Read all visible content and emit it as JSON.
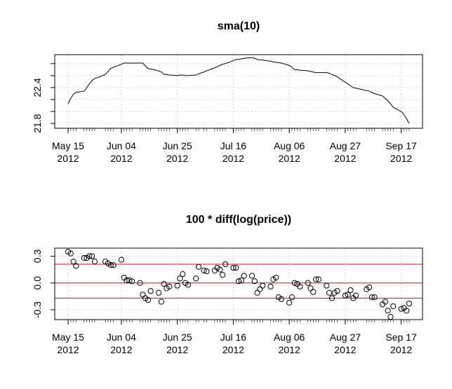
{
  "chart_data": [
    {
      "type": "line",
      "title": "sma(10)",
      "color": "#000000",
      "x": [
        "2012-05-15",
        "2012-05-16",
        "2012-05-17",
        "2012-05-18",
        "2012-05-21",
        "2012-05-22",
        "2012-05-23",
        "2012-05-24",
        "2012-05-25",
        "2012-05-29",
        "2012-05-30",
        "2012-05-31",
        "2012-06-01",
        "2012-06-04",
        "2012-06-05",
        "2012-06-06",
        "2012-06-07",
        "2012-06-08",
        "2012-06-11",
        "2012-06-12",
        "2012-06-13",
        "2012-06-14",
        "2012-06-15",
        "2012-06-18",
        "2012-06-19",
        "2012-06-20",
        "2012-06-21",
        "2012-06-22",
        "2012-06-25",
        "2012-06-26",
        "2012-06-27",
        "2012-06-28",
        "2012-06-29",
        "2012-07-02",
        "2012-07-03",
        "2012-07-05",
        "2012-07-06",
        "2012-07-09",
        "2012-07-10",
        "2012-07-11",
        "2012-07-12",
        "2012-07-13",
        "2012-07-16",
        "2012-07-17",
        "2012-07-18",
        "2012-07-19",
        "2012-07-20",
        "2012-07-23",
        "2012-07-24",
        "2012-07-25",
        "2012-07-26",
        "2012-07-27",
        "2012-07-30",
        "2012-07-31",
        "2012-08-01",
        "2012-08-02",
        "2012-08-03",
        "2012-08-06",
        "2012-08-07",
        "2012-08-08",
        "2012-08-09",
        "2012-08-10",
        "2012-08-13",
        "2012-08-14",
        "2012-08-15",
        "2012-08-16",
        "2012-08-17",
        "2012-08-20",
        "2012-08-21",
        "2012-08-22",
        "2012-08-23",
        "2012-08-24",
        "2012-08-27",
        "2012-08-28",
        "2012-08-29",
        "2012-08-30",
        "2012-08-31",
        "2012-09-04",
        "2012-09-05",
        "2012-09-06",
        "2012-09-07",
        "2012-09-10",
        "2012-09-11",
        "2012-09-12",
        "2012-09-13",
        "2012-09-14",
        "2012-09-17",
        "2012-09-18",
        "2012-09-19",
        "2012-09-20"
      ],
      "values": [
        22.13,
        22.22,
        22.29,
        22.32,
        22.34,
        22.4,
        22.46,
        22.52,
        22.55,
        22.62,
        22.67,
        22.72,
        22.74,
        22.79,
        22.81,
        22.81,
        22.81,
        22.81,
        22.81,
        22.81,
        22.76,
        22.72,
        22.71,
        22.68,
        22.66,
        22.62,
        22.62,
        22.61,
        22.6,
        22.61,
        22.61,
        22.6,
        22.6,
        22.61,
        22.63,
        22.66,
        22.68,
        22.73,
        22.75,
        22.77,
        22.79,
        22.8,
        22.85,
        22.87,
        22.87,
        22.88,
        22.89,
        22.9,
        22.89,
        22.87,
        22.86,
        22.86,
        22.84,
        22.83,
        22.82,
        22.82,
        22.81,
        22.77,
        22.74,
        22.7,
        22.7,
        22.69,
        22.68,
        22.67,
        22.66,
        22.65,
        22.65,
        22.65,
        22.64,
        22.62,
        22.6,
        22.58,
        22.49,
        22.46,
        22.43,
        22.4,
        22.39,
        22.35,
        22.34,
        22.32,
        22.3,
        22.26,
        22.22,
        22.18,
        22.13,
        22.07,
        22.0,
        21.95,
        21.88,
        21.8
      ],
      "xlim": [
        "2012-05-10",
        "2012-09-25"
      ],
      "xticks": [
        {
          "value": "2012-05-15",
          "label": "May 15\n2012"
        },
        {
          "value": "2012-06-04",
          "label": "Jun 04\n2012"
        },
        {
          "value": "2012-06-25",
          "label": "Jun 25\n2012"
        },
        {
          "value": "2012-07-16",
          "label": "Jul 16\n2012"
        },
        {
          "value": "2012-08-06",
          "label": "Aug 06\n2012"
        },
        {
          "value": "2012-08-27",
          "label": "Aug 27\n2012"
        },
        {
          "value": "2012-09-17",
          "label": "Sep 17\n2012"
        }
      ],
      "ylim": [
        21.72,
        22.95
      ],
      "yticks": [
        21.8,
        22.4
      ],
      "minor_yticks": [
        22.0,
        22.2,
        22.6,
        22.8
      ],
      "grid": true
    },
    {
      "type": "scatter",
      "title": "100 * diff(log(price))",
      "color": "#000000",
      "x": [
        "2012-05-15",
        "2012-05-16",
        "2012-05-17",
        "2012-05-18",
        "2012-05-21",
        "2012-05-22",
        "2012-05-23",
        "2012-05-24",
        "2012-05-25",
        "2012-05-29",
        "2012-05-30",
        "2012-05-31",
        "2012-06-01",
        "2012-06-04",
        "2012-06-05",
        "2012-06-06",
        "2012-06-07",
        "2012-06-08",
        "2012-06-11",
        "2012-06-12",
        "2012-06-13",
        "2012-06-14",
        "2012-06-15",
        "2012-06-18",
        "2012-06-19",
        "2012-06-20",
        "2012-06-21",
        "2012-06-22",
        "2012-06-25",
        "2012-06-26",
        "2012-06-27",
        "2012-06-28",
        "2012-06-29",
        "2012-07-02",
        "2012-07-03",
        "2012-07-05",
        "2012-07-06",
        "2012-07-09",
        "2012-07-10",
        "2012-07-11",
        "2012-07-12",
        "2012-07-13",
        "2012-07-16",
        "2012-07-17",
        "2012-07-18",
        "2012-07-19",
        "2012-07-20",
        "2012-07-23",
        "2012-07-24",
        "2012-07-25",
        "2012-07-26",
        "2012-07-27",
        "2012-07-30",
        "2012-07-31",
        "2012-08-01",
        "2012-08-02",
        "2012-08-03",
        "2012-08-06",
        "2012-08-07",
        "2012-08-08",
        "2012-08-09",
        "2012-08-10",
        "2012-08-13",
        "2012-08-14",
        "2012-08-15",
        "2012-08-16",
        "2012-08-17",
        "2012-08-20",
        "2012-08-21",
        "2012-08-22",
        "2012-08-23",
        "2012-08-24",
        "2012-08-27",
        "2012-08-28",
        "2012-08-29",
        "2012-08-30",
        "2012-08-31",
        "2012-09-04",
        "2012-09-05",
        "2012-09-06",
        "2012-09-07",
        "2012-09-10",
        "2012-09-11",
        "2012-09-12",
        "2012-09-13",
        "2012-09-14",
        "2012-09-17",
        "2012-09-18",
        "2012-09-19",
        "2012-09-20"
      ],
      "values": [
        0.35,
        0.33,
        0.24,
        0.19,
        0.28,
        0.28,
        0.3,
        0.3,
        0.24,
        0.24,
        0.22,
        0.2,
        0.2,
        0.26,
        0.06,
        0.03,
        0.03,
        0.02,
        0.0,
        -0.13,
        -0.17,
        -0.19,
        -0.09,
        -0.11,
        -0.21,
        -0.01,
        -0.06,
        -0.04,
        -0.03,
        0.05,
        0.1,
        0.0,
        -0.02,
        0.05,
        0.18,
        0.14,
        0.13,
        0.14,
        0.17,
        0.15,
        0.09,
        0.21,
        0.17,
        0.17,
        0.02,
        0.03,
        0.08,
        0.08,
        0.02,
        -0.11,
        -0.07,
        -0.03,
        -0.04,
        0.04,
        0.06,
        -0.16,
        -0.18,
        -0.22,
        -0.16,
        0.0,
        -0.01,
        -0.04,
        0.0,
        -0.06,
        -0.1,
        0.04,
        0.04,
        -0.03,
        -0.11,
        -0.17,
        -0.11,
        -0.09,
        -0.14,
        -0.13,
        -0.08,
        -0.17,
        -0.14,
        -0.07,
        -0.05,
        -0.16,
        -0.16,
        -0.24,
        -0.21,
        -0.31,
        -0.38,
        -0.26,
        -0.29,
        -0.28,
        -0.31,
        -0.23
      ],
      "xlim": [
        "2012-05-10",
        "2012-09-25"
      ],
      "xticks": [
        {
          "value": "2012-05-15",
          "label": "May 15\n2012"
        },
        {
          "value": "2012-06-04",
          "label": "Jun 04\n2012"
        },
        {
          "value": "2012-06-25",
          "label": "Jun 25\n2012"
        },
        {
          "value": "2012-07-16",
          "label": "Jul 16\n2012"
        },
        {
          "value": "2012-08-06",
          "label": "Aug 06\n2012"
        },
        {
          "value": "2012-08-27",
          "label": "Aug 27\n2012"
        },
        {
          "value": "2012-09-17",
          "label": "Sep 17\n2012"
        }
      ],
      "ylim": [
        -0.41,
        0.39
      ],
      "yticks": [
        0.3,
        {
          "value": 0,
          "label": "0.0"
        },
        -0.3
      ],
      "hlines": [
        0.21,
        0,
        -0.17
      ],
      "hline_color": "#ff0000",
      "grid": true
    }
  ]
}
